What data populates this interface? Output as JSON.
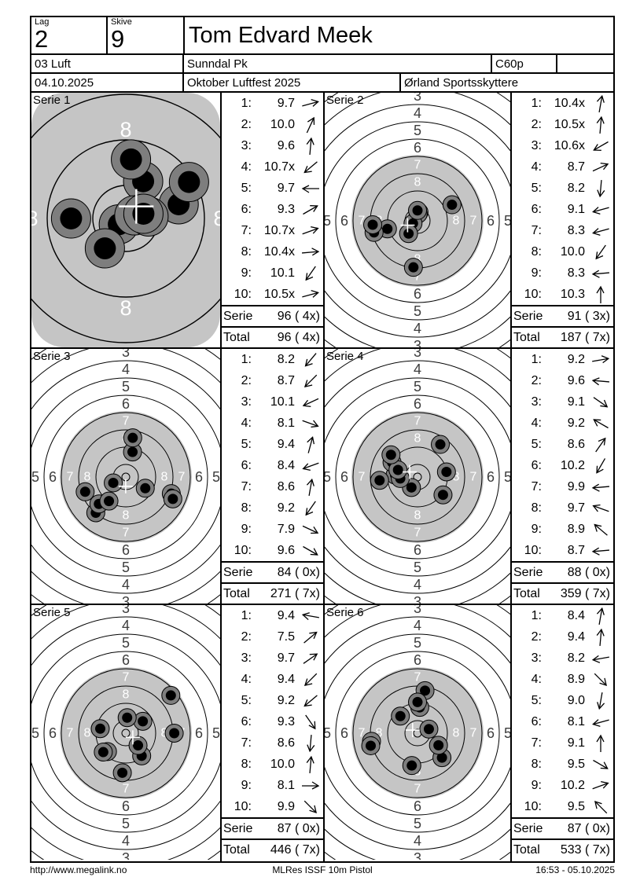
{
  "header": {
    "lag_label": "Lag",
    "lag_value": "2",
    "skive_label": "Skive",
    "skive_value": "9",
    "shooter_name": "Tom Edvard Meek",
    "discipline": "03 Luft",
    "club": "Sunndal Pk",
    "class": "C60p",
    "date": "04.10.2025",
    "event": "Oktober Luftfest 2025",
    "organizer": "Ørland Sportsskyttere"
  },
  "footer": {
    "url": "http://www.megalink.no",
    "program": "MLRes ISSF 10m Pistol",
    "timestamp": "16:53 - 05.10.2025"
  },
  "colors": {
    "target_gray": "#c5c5c5",
    "shot_outer": "#7e7e7e",
    "shot_inner": "#000000",
    "ring_line": "#000000",
    "ring_label_inside": "#ffffff",
    "ring_label_outside": "#3c3c3c",
    "poi_cross": "#ffffff",
    "text": "#000000"
  },
  "target_template": {
    "zoom_ring_label": "8",
    "zoom_edge_label": "7",
    "full_dark_vertical_labels": [
      [
        "3",
        159
      ],
      [
        "4",
        137
      ],
      [
        "5",
        115
      ],
      [
        "6",
        93
      ]
    ],
    "full_dark_horizontal_labels": [
      [
        "5",
        115
      ],
      [
        "6",
        93
      ]
    ],
    "full_white_labels": [
      [
        "7",
        71
      ],
      [
        "8",
        49
      ]
    ]
  },
  "series": [
    {
      "label": "Serie 1",
      "zoomed": true,
      "shots": [
        {
          "n": "1:",
          "value": "9.7",
          "score": 9.7,
          "dir_deg": 15
        },
        {
          "n": "2:",
          "value": "10.0",
          "score": 10.0,
          "dir_deg": 65
        },
        {
          "n": "3:",
          "value": "9.6",
          "score": 9.6,
          "dir_deg": 85
        },
        {
          "n": "4:",
          "value": "10.7x",
          "score": 10.7,
          "dir_deg": 220
        },
        {
          "n": "5:",
          "value": "9.7",
          "score": 9.7,
          "dir_deg": 180
        },
        {
          "n": "6:",
          "value": "9.3",
          "score": 9.3,
          "dir_deg": 30
        },
        {
          "n": "7:",
          "value": "10.7x",
          "score": 10.7,
          "dir_deg": 20
        },
        {
          "n": "8:",
          "value": "10.4x",
          "score": 10.4,
          "dir_deg": 5
        },
        {
          "n": "9:",
          "value": "10.1",
          "score": 10.1,
          "dir_deg": 235
        },
        {
          "n": "10:",
          "value": "10.5x",
          "score": 10.5,
          "dir_deg": 15
        }
      ],
      "sum_label": "Serie",
      "sum_value": "96 ( 4x)",
      "total_label": "Total",
      "total_value": "96 ( 4x)"
    },
    {
      "label": "Serie 2",
      "zoomed": false,
      "shots": [
        {
          "n": "1:",
          "value": "10.4x",
          "score": 10.4,
          "dir_deg": 80
        },
        {
          "n": "2:",
          "value": "10.5x",
          "score": 10.5,
          "dir_deg": 85
        },
        {
          "n": "3:",
          "value": "10.6x",
          "score": 10.6,
          "dir_deg": 210
        },
        {
          "n": "4:",
          "value": "8.7",
          "score": 8.7,
          "dir_deg": 25
        },
        {
          "n": "5:",
          "value": "8.2",
          "score": 8.2,
          "dir_deg": 265
        },
        {
          "n": "6:",
          "value": "9.1",
          "score": 9.1,
          "dir_deg": 195
        },
        {
          "n": "7:",
          "value": "8.3",
          "score": 8.3,
          "dir_deg": 195
        },
        {
          "n": "8:",
          "value": "10.0",
          "score": 10.0,
          "dir_deg": 235
        },
        {
          "n": "9:",
          "value": "8.3",
          "score": 8.3,
          "dir_deg": 185
        },
        {
          "n": "10:",
          "value": "10.3",
          "score": 10.3,
          "dir_deg": 90
        }
      ],
      "sum_label": "Serie",
      "sum_value": "91 ( 3x)",
      "total_label": "Total",
      "total_value": "187 ( 7x)"
    },
    {
      "label": "Serie 3",
      "zoomed": false,
      "shots": [
        {
          "n": "1:",
          "value": "8.2",
          "score": 8.2,
          "dir_deg": 230
        },
        {
          "n": "2:",
          "value": "8.7",
          "score": 8.7,
          "dir_deg": 225
        },
        {
          "n": "3:",
          "value": "10.1",
          "score": 10.1,
          "dir_deg": 205
        },
        {
          "n": "4:",
          "value": "8.1",
          "score": 8.1,
          "dir_deg": 340
        },
        {
          "n": "5:",
          "value": "9.4",
          "score": 9.4,
          "dir_deg": 75
        },
        {
          "n": "6:",
          "value": "8.4",
          "score": 8.4,
          "dir_deg": 200
        },
        {
          "n": "7:",
          "value": "8.6",
          "score": 8.6,
          "dir_deg": 80
        },
        {
          "n": "8:",
          "value": "9.2",
          "score": 9.2,
          "dir_deg": 235
        },
        {
          "n": "9:",
          "value": "7.9",
          "score": 7.9,
          "dir_deg": 335
        },
        {
          "n": "10:",
          "value": "9.6",
          "score": 9.6,
          "dir_deg": 330
        }
      ],
      "sum_label": "Serie",
      "sum_value": "84 ( 0x)",
      "total_label": "Total",
      "total_value": "271 ( 7x)"
    },
    {
      "label": "Serie 4",
      "zoomed": false,
      "shots": [
        {
          "n": "1:",
          "value": "9.2",
          "score": 9.2,
          "dir_deg": 10
        },
        {
          "n": "2:",
          "value": "9.6",
          "score": 9.6,
          "dir_deg": 175
        },
        {
          "n": "3:",
          "value": "9.1",
          "score": 9.1,
          "dir_deg": 325
        },
        {
          "n": "4:",
          "value": "9.2",
          "score": 9.2,
          "dir_deg": 150
        },
        {
          "n": "5:",
          "value": "8.6",
          "score": 8.6,
          "dir_deg": 55
        },
        {
          "n": "6:",
          "value": "10.2",
          "score": 10.2,
          "dir_deg": 240
        },
        {
          "n": "7:",
          "value": "9.9",
          "score": 9.9,
          "dir_deg": 185
        },
        {
          "n": "8:",
          "value": "9.7",
          "score": 9.7,
          "dir_deg": 160
        },
        {
          "n": "9:",
          "value": "8.9",
          "score": 8.9,
          "dir_deg": 140
        },
        {
          "n": "10:",
          "value": "8.7",
          "score": 8.7,
          "dir_deg": 185
        }
      ],
      "sum_label": "Serie",
      "sum_value": "88 ( 0x)",
      "total_label": "Total",
      "total_value": "359 ( 7x)"
    },
    {
      "label": "Serie 5",
      "zoomed": false,
      "shots": [
        {
          "n": "1:",
          "value": "9.4",
          "score": 9.4,
          "dir_deg": 170
        },
        {
          "n": "2:",
          "value": "7.5",
          "score": 7.5,
          "dir_deg": 40
        },
        {
          "n": "3:",
          "value": "9.7",
          "score": 9.7,
          "dir_deg": 35
        },
        {
          "n": "4:",
          "value": "9.4",
          "score": 9.4,
          "dir_deg": 225
        },
        {
          "n": "5:",
          "value": "9.2",
          "score": 9.2,
          "dir_deg": 220
        },
        {
          "n": "6:",
          "value": "9.3",
          "score": 9.3,
          "dir_deg": 305
        },
        {
          "n": "7:",
          "value": "8.6",
          "score": 8.6,
          "dir_deg": 265
        },
        {
          "n": "8:",
          "value": "10.0",
          "score": 10.0,
          "dir_deg": 85
        },
        {
          "n": "9:",
          "value": "8.1",
          "score": 8.1,
          "dir_deg": 0
        },
        {
          "n": "10:",
          "value": "9.9",
          "score": 9.9,
          "dir_deg": 315
        }
      ],
      "sum_label": "Serie",
      "sum_value": "87 ( 0x)",
      "total_label": "Total",
      "total_value": "446 ( 7x)"
    },
    {
      "label": "Serie 6",
      "zoomed": false,
      "shots": [
        {
          "n": "1:",
          "value": "8.4",
          "score": 8.4,
          "dir_deg": 80
        },
        {
          "n": "2:",
          "value": "9.4",
          "score": 9.4,
          "dir_deg": 85
        },
        {
          "n": "3:",
          "value": "8.2",
          "score": 8.2,
          "dir_deg": 190
        },
        {
          "n": "4:",
          "value": "8.9",
          "score": 8.9,
          "dir_deg": 315
        },
        {
          "n": "5:",
          "value": "9.0",
          "score": 9.0,
          "dir_deg": 260
        },
        {
          "n": "6:",
          "value": "8.1",
          "score": 8.1,
          "dir_deg": 195
        },
        {
          "n": "7:",
          "value": "9.1",
          "score": 9.1,
          "dir_deg": 90
        },
        {
          "n": "8:",
          "value": "9.5",
          "score": 9.5,
          "dir_deg": 330
        },
        {
          "n": "9:",
          "value": "10.2",
          "score": 10.2,
          "dir_deg": 20
        },
        {
          "n": "10:",
          "value": "9.5",
          "score": 9.5,
          "dir_deg": 135
        }
      ],
      "sum_label": "Serie",
      "sum_value": "87 ( 0x)",
      "total_label": "Total",
      "total_value": "533 ( 7x)"
    }
  ]
}
